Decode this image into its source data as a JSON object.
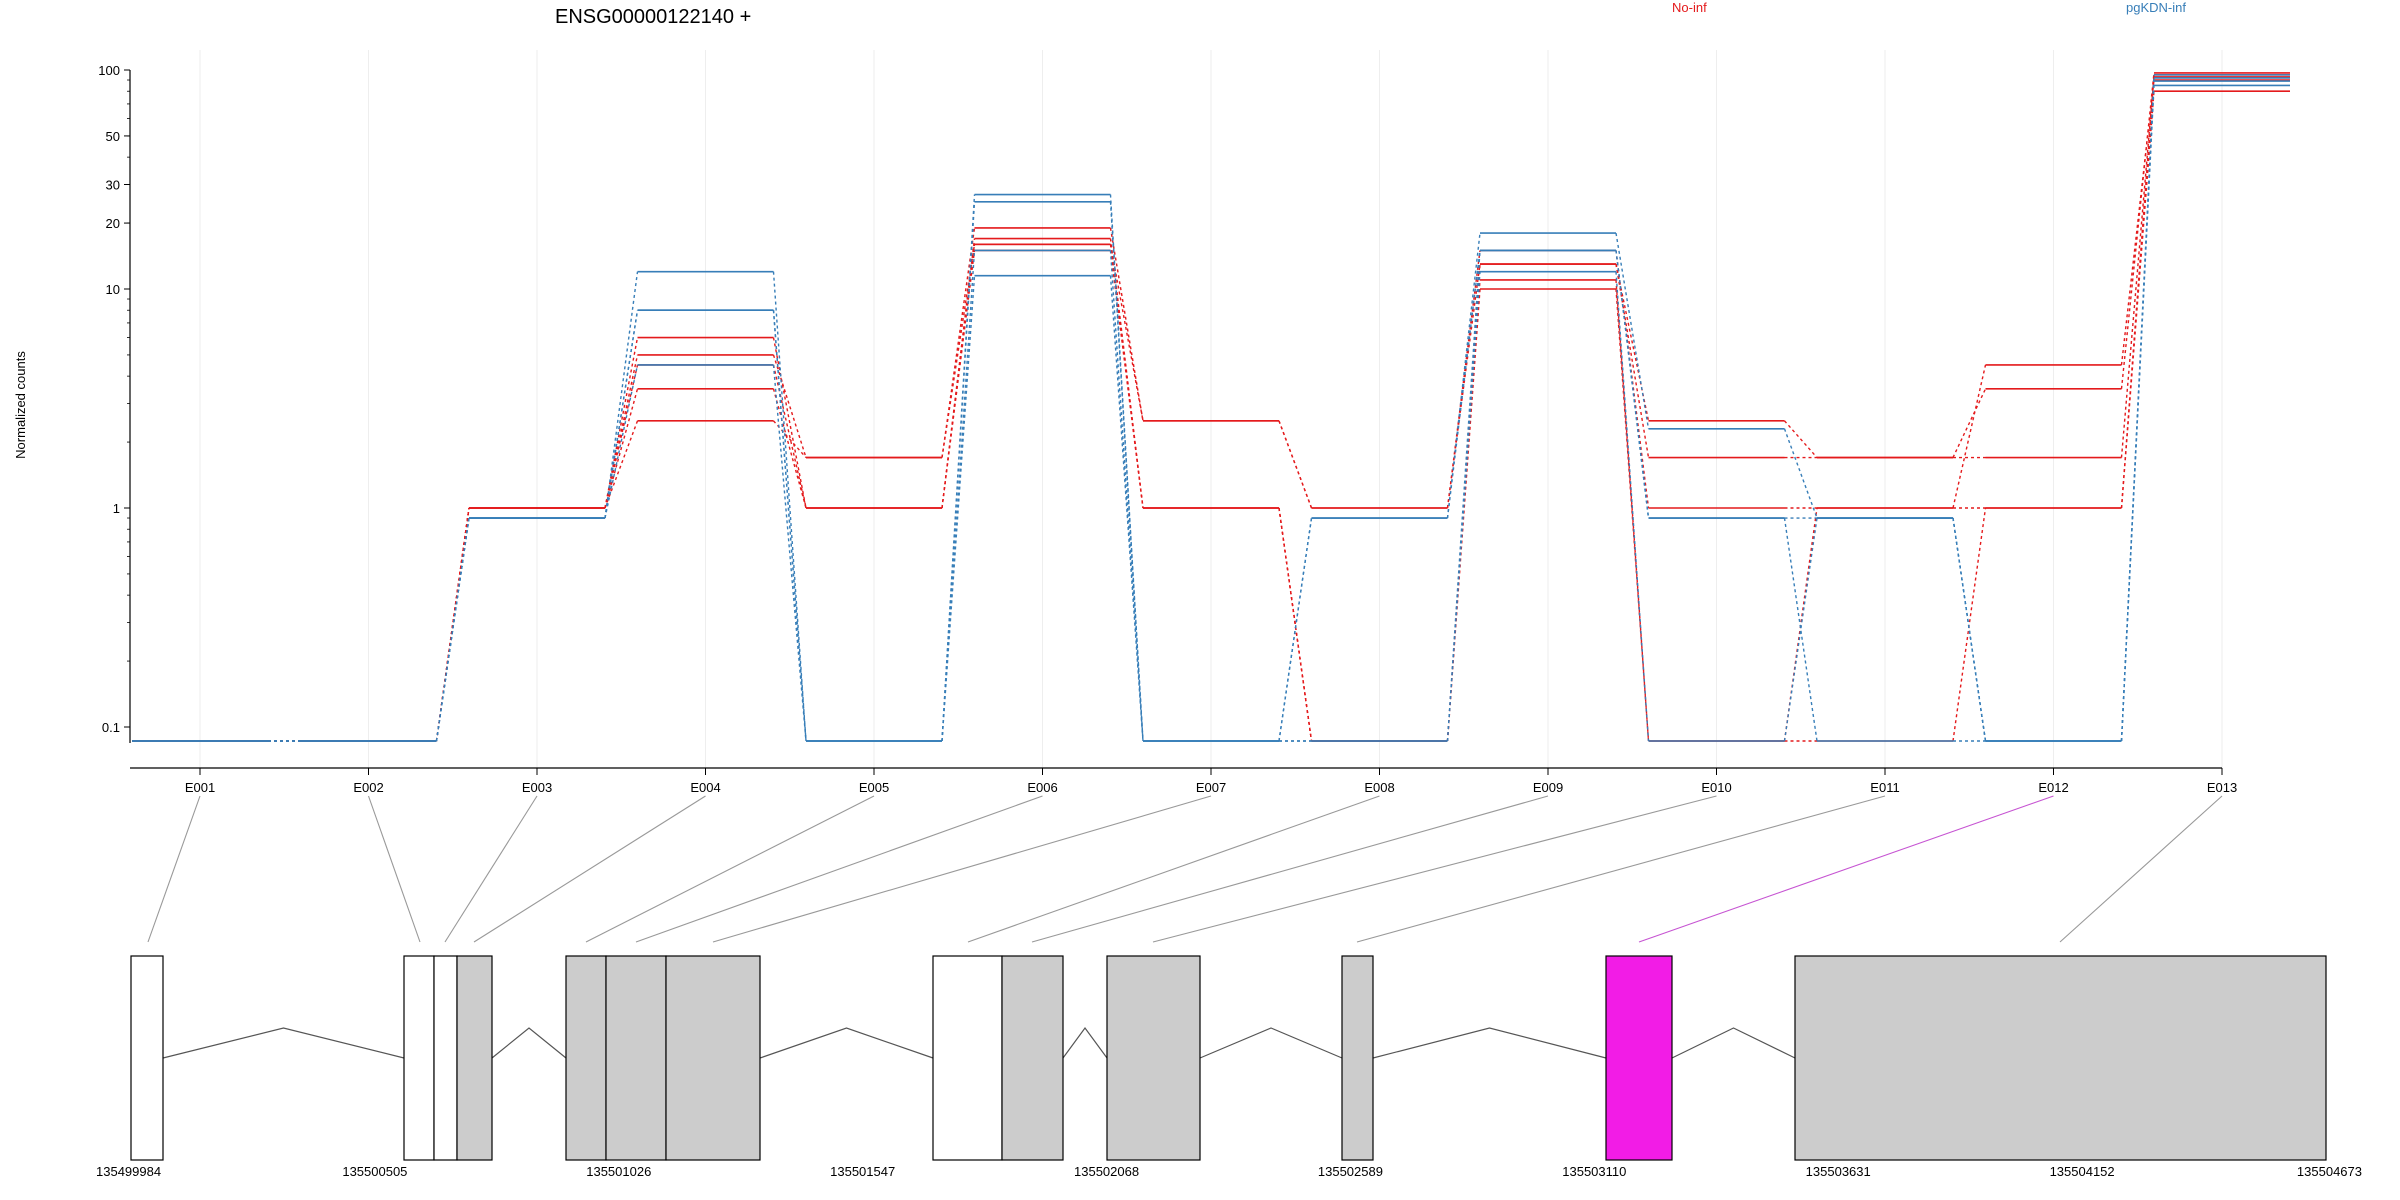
{
  "chart_data": {
    "type": "line",
    "title": "ENSG00000122140 +",
    "ylabel": "Normalized counts",
    "xlabel": "",
    "y_scale": "log",
    "y_floor_value": 0.07,
    "ylim": [
      0.07,
      100
    ],
    "y_ticks": [
      {
        "label": "100",
        "value": 100
      },
      {
        "label": "50",
        "value": 50
      },
      {
        "label": "30",
        "value": 30
      },
      {
        "label": "20",
        "value": 20
      },
      {
        "label": "10",
        "value": 10
      },
      {
        "label": "1",
        "value": 1
      },
      {
        "label": "0.1",
        "value": 0.1
      }
    ],
    "categories": [
      "E001",
      "E002",
      "E003",
      "E004",
      "E005",
      "E006",
      "E007",
      "E008",
      "E009",
      "E010",
      "E011",
      "E012",
      "E013"
    ],
    "highlighted_exon": "E012",
    "grid": true,
    "legend": [
      {
        "name": "No-inf",
        "color": "#e41a1c"
      },
      {
        "name": "pgKDN-inf",
        "color": "#377eb8"
      }
    ],
    "series": [
      {
        "group": "No-inf",
        "values": [
          0.07,
          0.07,
          1.0,
          2.5,
          1.7,
          19,
          2.5,
          1.0,
          13,
          2.5,
          1.7,
          3.5,
          97
        ]
      },
      {
        "group": "No-inf",
        "values": [
          0.07,
          0.07,
          1.0,
          6.0,
          1.0,
          17,
          1.0,
          0.07,
          13,
          1.7,
          1.7,
          1.7,
          93
        ]
      },
      {
        "group": "No-inf",
        "values": [
          0.07,
          0.07,
          1.0,
          5.0,
          1.7,
          16,
          2.5,
          1.0,
          15,
          1.0,
          1.0,
          4.5,
          90
        ]
      },
      {
        "group": "No-inf",
        "values": [
          0.07,
          0.07,
          1.0,
          4.5,
          1.0,
          16,
          1.0,
          0.07,
          11,
          0.07,
          1.0,
          1.0,
          80
        ]
      },
      {
        "group": "No-inf",
        "values": [
          0.07,
          0.07,
          1.0,
          3.5,
          1.0,
          15,
          1.0,
          0.07,
          10,
          0.07,
          0.07,
          1.0,
          95
        ]
      },
      {
        "group": "pgKDN-inf",
        "values": [
          0.07,
          0.07,
          0.9,
          12,
          0.07,
          27,
          0.07,
          0.9,
          18,
          2.3,
          0.9,
          0.07,
          95
        ]
      },
      {
        "group": "pgKDN-inf",
        "values": [
          0.07,
          0.07,
          0.9,
          8.0,
          0.07,
          25,
          0.07,
          0.07,
          15,
          0.9,
          0.9,
          0.07,
          92
        ]
      },
      {
        "group": "pgKDN-inf",
        "values": [
          0.07,
          0.07,
          0.9,
          8.0,
          0.07,
          15,
          0.07,
          0.07,
          12,
          0.07,
          0.9,
          0.07,
          89
        ]
      },
      {
        "group": "pgKDN-inf",
        "values": [
          0.07,
          0.07,
          0.9,
          4.5,
          0.07,
          11.5,
          0.07,
          0.9,
          15,
          0.9,
          0.07,
          0.07,
          85
        ]
      }
    ]
  },
  "gene_model": {
    "coordinate_labels": [
      "135499984",
      "135500505",
      "135501026",
      "135501547",
      "135502068",
      "135502589",
      "135503110",
      "135503631",
      "135504152",
      "135504673"
    ],
    "exon_fill": "#cccccc",
    "utr_fill": "#ffffff",
    "highlight_fill": "#f21ce6",
    "connector_color": "#999999",
    "highlight_connector_color": "#c654d2"
  }
}
